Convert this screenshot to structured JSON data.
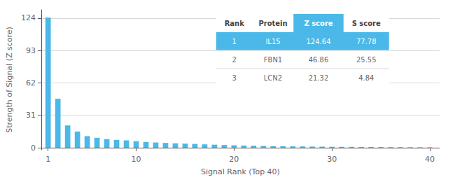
{
  "chart_data": {
    "type": "bar",
    "x": [
      1,
      2,
      3,
      4,
      5,
      6,
      7,
      8,
      9,
      10,
      11,
      12,
      13,
      14,
      15,
      16,
      17,
      18,
      19,
      20,
      21,
      22,
      23,
      24,
      25,
      26,
      27,
      28,
      29,
      30,
      31,
      32,
      33,
      34,
      35,
      36,
      37,
      38,
      39,
      40
    ],
    "values": [
      124.64,
      46.86,
      21.32,
      15.5,
      11.0,
      9.5,
      8.2,
      7.5,
      7.0,
      6.2,
      5.5,
      5.0,
      4.6,
      4.2,
      3.9,
      3.6,
      3.2,
      2.9,
      2.6,
      2.3,
      2.1,
      1.9,
      1.7,
      1.5,
      1.4,
      1.3,
      1.2,
      1.1,
      1.0,
      0.9,
      0.85,
      0.8,
      0.75,
      0.7,
      0.65,
      0.6,
      0.55,
      0.5,
      0.45,
      0.4
    ],
    "color": "#4ab8e8",
    "xlabel": "Signal Rank (Top 40)",
    "ylabel": "Strength of Signal (Z score)",
    "xlim": [
      0.3,
      41
    ],
    "xticks": [
      1,
      10,
      20,
      30,
      40
    ],
    "ylim": [
      -2,
      132
    ],
    "yticks": [
      0,
      31,
      62,
      93,
      124
    ],
    "grid": true,
    "table": {
      "headers": [
        "Rank",
        "Protein",
        "Z score",
        "S score"
      ],
      "rows": [
        [
          "1",
          "IL15",
          "124.64",
          "77.78"
        ],
        [
          "2",
          "FBN1",
          "46.86",
          "25.55"
        ],
        [
          "3",
          "LCN2",
          "21.32",
          "4.84"
        ]
      ]
    }
  }
}
